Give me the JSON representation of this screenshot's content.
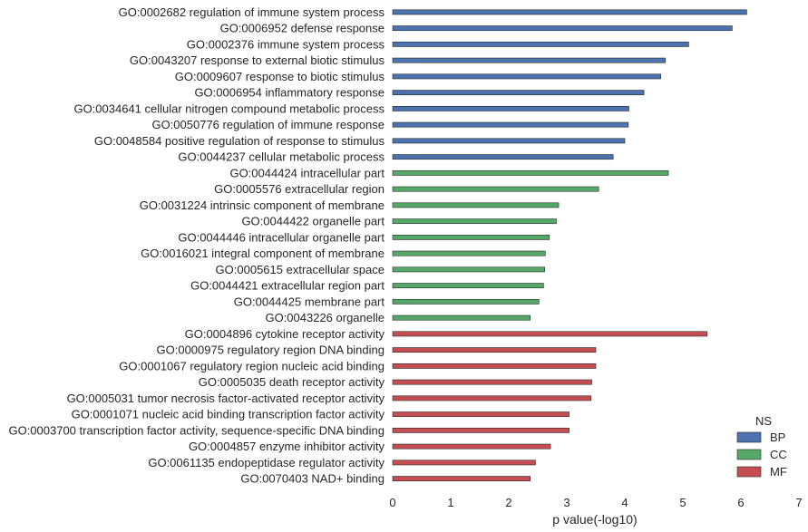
{
  "chart_data": {
    "type": "bar",
    "orientation": "horizontal",
    "xlabel": "p value(-log10)",
    "ylabel": "",
    "xlim": [
      0,
      7
    ],
    "xticks": [
      "0",
      "1",
      "2",
      "3",
      "4",
      "5",
      "6",
      "7"
    ],
    "grid": false,
    "legend": {
      "title": "NS",
      "position": "bottom-right",
      "entries": [
        {
          "name": "BP",
          "color": "#4c72b0"
        },
        {
          "name": "CC",
          "color": "#55a868"
        },
        {
          "name": "MF",
          "color": "#c44e52"
        }
      ]
    },
    "categories": [
      "GO:0002682 regulation of immune system process",
      "GO:0006952 defense response",
      "GO:0002376 immune system process",
      "GO:0043207 response to external biotic stimulus",
      "GO:0009607 response to biotic stimulus",
      "GO:0006954 inflammatory response",
      "GO:0034641 cellular nitrogen compound metabolic process",
      "GO:0050776 regulation of immune response",
      "GO:0048584 positive regulation of response to stimulus",
      "GO:0044237 cellular metabolic process",
      "GO:0044424 intracellular part",
      "GO:0005576 extracellular region",
      "GO:0031224 intrinsic component of membrane",
      "GO:0044422 organelle part",
      "GO:0044446 intracellular organelle part",
      "GO:0016021 integral component of membrane",
      "GO:0005615 extracellular space",
      "GO:0044421 extracellular region part",
      "GO:0044425 membrane part",
      "GO:0043226 organelle",
      "GO:0004896 cytokine receptor activity",
      "GO:0000975 regulatory region DNA binding",
      "GO:0001067 regulatory region nucleic acid binding",
      "GO:0005035 death receptor activity",
      "GO:0005031 tumor necrosis factor-activated receptor activity",
      "GO:0001071 nucleic acid binding transcription factor activity",
      "GO:0003700 transcription factor activity, sequence-specific DNA binding",
      "GO:0004857 enzyme inhibitor activity",
      "GO:0061135 endopeptidase regulator activity",
      "GO:0070403 NAD+ binding"
    ],
    "namespace": [
      "BP",
      "BP",
      "BP",
      "BP",
      "BP",
      "BP",
      "BP",
      "BP",
      "BP",
      "BP",
      "CC",
      "CC",
      "CC",
      "CC",
      "CC",
      "CC",
      "CC",
      "CC",
      "CC",
      "CC",
      "MF",
      "MF",
      "MF",
      "MF",
      "MF",
      "MF",
      "MF",
      "MF",
      "MF",
      "MF"
    ],
    "values": [
      6.1,
      5.85,
      5.1,
      4.7,
      4.62,
      4.33,
      4.07,
      4.06,
      4.0,
      3.8,
      4.75,
      3.55,
      2.86,
      2.82,
      2.7,
      2.63,
      2.62,
      2.6,
      2.52,
      2.37,
      5.42,
      3.5,
      3.5,
      3.43,
      3.42,
      3.04,
      3.04,
      2.72,
      2.46,
      2.37
    ]
  }
}
